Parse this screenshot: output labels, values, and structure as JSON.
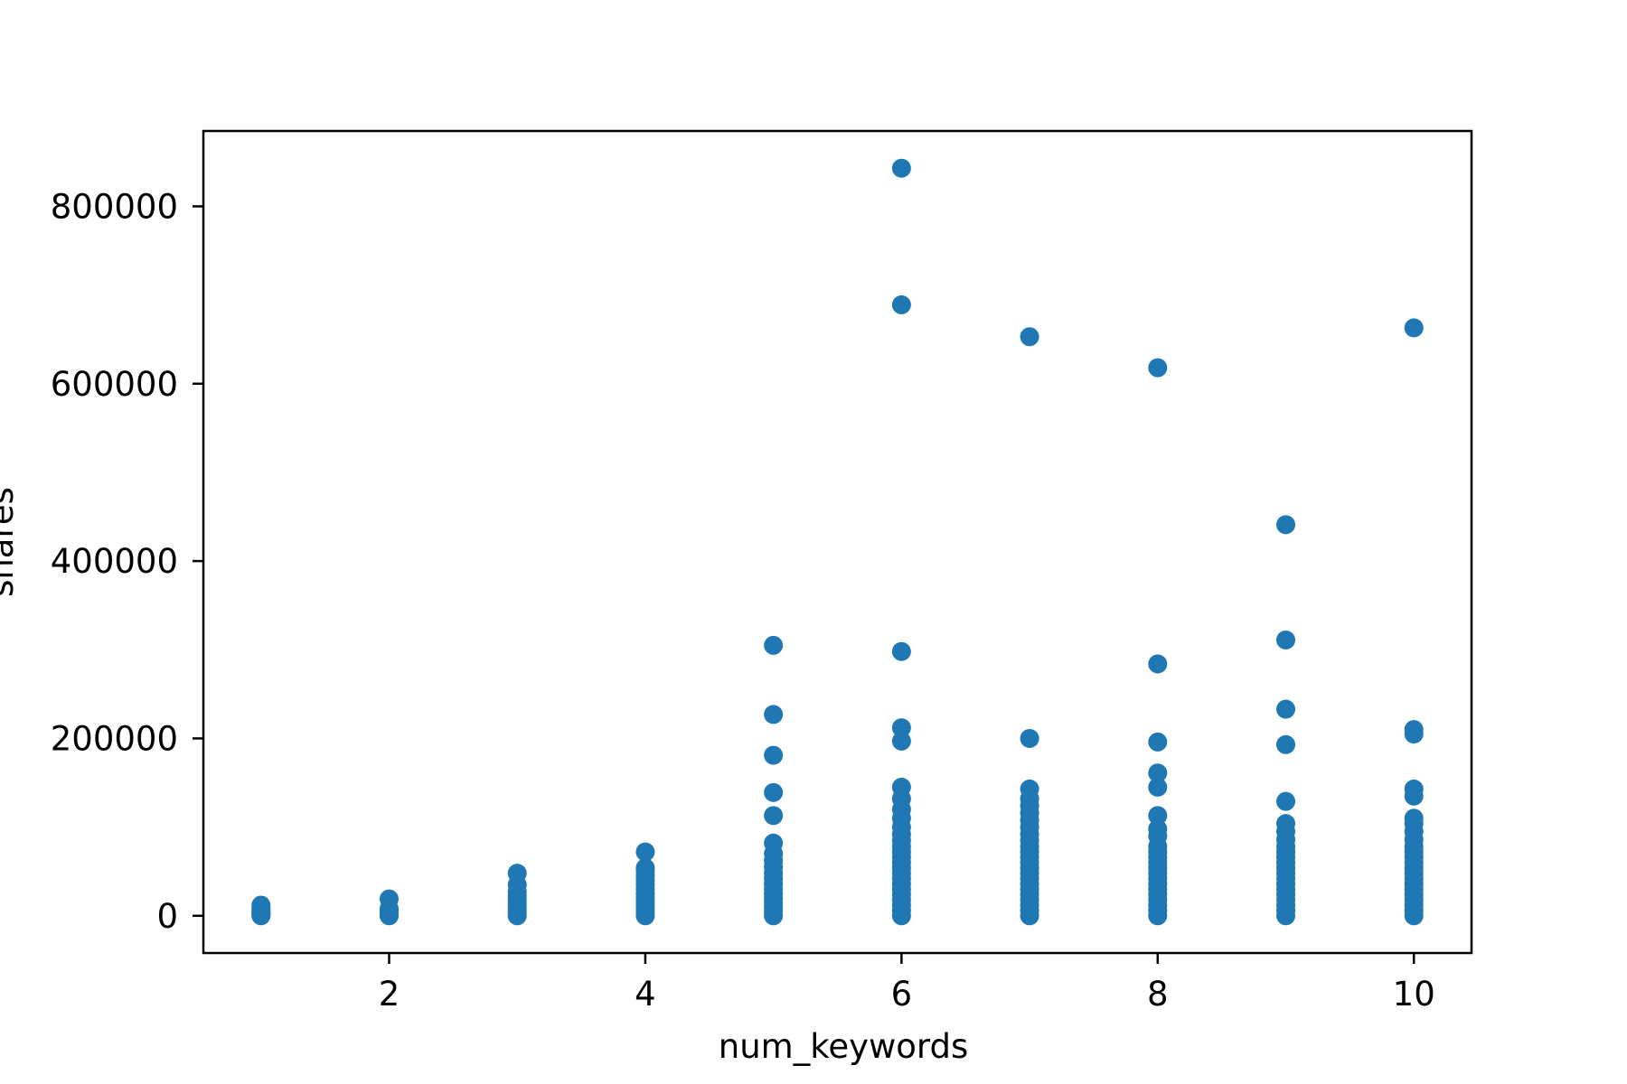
{
  "chart_data": {
    "type": "scatter",
    "title": "",
    "xlabel": "num_keywords",
    "ylabel": "shares",
    "xlim": [
      0.55,
      10.45
    ],
    "ylim": [
      -42000,
      885000
    ],
    "x_ticks": [
      2,
      4,
      6,
      8,
      10
    ],
    "y_ticks": [
      0,
      200000,
      400000,
      600000,
      800000
    ],
    "x_tick_labels": [
      "2",
      "4",
      "6",
      "8",
      "10"
    ],
    "y_tick_labels": [
      "0",
      "200000",
      "400000",
      "600000",
      "800000"
    ],
    "grid": false,
    "legend": "none",
    "colors": {
      "points": "#1f77b4",
      "axes": "#000000",
      "background": "#ffffff"
    },
    "points": [
      [
        1,
        0
      ],
      [
        1,
        1000
      ],
      [
        1,
        2000
      ],
      [
        1,
        3000
      ],
      [
        1,
        4000
      ],
      [
        1,
        5000
      ],
      [
        1,
        7000
      ],
      [
        1,
        9000
      ],
      [
        1,
        12000
      ],
      [
        2,
        0
      ],
      [
        2,
        1000
      ],
      [
        2,
        2000
      ],
      [
        2,
        4000
      ],
      [
        2,
        6000
      ],
      [
        2,
        8000
      ],
      [
        2,
        19000
      ],
      [
        3,
        0
      ],
      [
        3,
        3000
      ],
      [
        3,
        6000
      ],
      [
        3,
        10000
      ],
      [
        3,
        14000
      ],
      [
        3,
        18000
      ],
      [
        3,
        22000
      ],
      [
        3,
        27000
      ],
      [
        3,
        35000
      ],
      [
        3,
        48000
      ],
      [
        4,
        0
      ],
      [
        4,
        4000
      ],
      [
        4,
        8000
      ],
      [
        4,
        12000
      ],
      [
        4,
        16000
      ],
      [
        4,
        20000
      ],
      [
        4,
        25000
      ],
      [
        4,
        30000
      ],
      [
        4,
        35000
      ],
      [
        4,
        40000
      ],
      [
        4,
        45000
      ],
      [
        4,
        50000
      ],
      [
        4,
        54000
      ],
      [
        4,
        72000
      ],
      [
        5,
        0
      ],
      [
        5,
        5000
      ],
      [
        5,
        10000
      ],
      [
        5,
        15000
      ],
      [
        5,
        20000
      ],
      [
        5,
        25000
      ],
      [
        5,
        30000
      ],
      [
        5,
        36000
      ],
      [
        5,
        42000
      ],
      [
        5,
        48000
      ],
      [
        5,
        55000
      ],
      [
        5,
        62000
      ],
      [
        5,
        70000
      ],
      [
        5,
        82000
      ],
      [
        5,
        113000
      ],
      [
        5,
        139000
      ],
      [
        5,
        181000
      ],
      [
        5,
        227000
      ],
      [
        5,
        305000
      ],
      [
        6,
        0
      ],
      [
        6,
        6000
      ],
      [
        6,
        12000
      ],
      [
        6,
        18000
      ],
      [
        6,
        24000
      ],
      [
        6,
        30000
      ],
      [
        6,
        36000
      ],
      [
        6,
        42000
      ],
      [
        6,
        48000
      ],
      [
        6,
        54000
      ],
      [
        6,
        60000
      ],
      [
        6,
        66000
      ],
      [
        6,
        72000
      ],
      [
        6,
        78000
      ],
      [
        6,
        85000
      ],
      [
        6,
        92000
      ],
      [
        6,
        100000
      ],
      [
        6,
        110000
      ],
      [
        6,
        120000
      ],
      [
        6,
        132000
      ],
      [
        6,
        145000
      ],
      [
        6,
        197000
      ],
      [
        6,
        212000
      ],
      [
        6,
        298000
      ],
      [
        6,
        689000
      ],
      [
        6,
        843000
      ],
      [
        7,
        0
      ],
      [
        7,
        6000
      ],
      [
        7,
        12000
      ],
      [
        7,
        18000
      ],
      [
        7,
        24000
      ],
      [
        7,
        30000
      ],
      [
        7,
        36000
      ],
      [
        7,
        42000
      ],
      [
        7,
        48000
      ],
      [
        7,
        54000
      ],
      [
        7,
        60000
      ],
      [
        7,
        66000
      ],
      [
        7,
        72000
      ],
      [
        7,
        78000
      ],
      [
        7,
        85000
      ],
      [
        7,
        92000
      ],
      [
        7,
        100000
      ],
      [
        7,
        108000
      ],
      [
        7,
        116000
      ],
      [
        7,
        124000
      ],
      [
        7,
        132000
      ],
      [
        7,
        143000
      ],
      [
        7,
        200000
      ],
      [
        7,
        653000
      ],
      [
        8,
        0
      ],
      [
        8,
        6000
      ],
      [
        8,
        12000
      ],
      [
        8,
        18000
      ],
      [
        8,
        24000
      ],
      [
        8,
        30000
      ],
      [
        8,
        36000
      ],
      [
        8,
        42000
      ],
      [
        8,
        48000
      ],
      [
        8,
        54000
      ],
      [
        8,
        60000
      ],
      [
        8,
        66000
      ],
      [
        8,
        72000
      ],
      [
        8,
        78000
      ],
      [
        8,
        90000
      ],
      [
        8,
        98000
      ],
      [
        8,
        113000
      ],
      [
        8,
        145000
      ],
      [
        8,
        161000
      ],
      [
        8,
        196000
      ],
      [
        8,
        284000
      ],
      [
        8,
        618000
      ],
      [
        9,
        0
      ],
      [
        9,
        6000
      ],
      [
        9,
        12000
      ],
      [
        9,
        18000
      ],
      [
        9,
        24000
      ],
      [
        9,
        30000
      ],
      [
        9,
        36000
      ],
      [
        9,
        42000
      ],
      [
        9,
        48000
      ],
      [
        9,
        54000
      ],
      [
        9,
        60000
      ],
      [
        9,
        66000
      ],
      [
        9,
        72000
      ],
      [
        9,
        78000
      ],
      [
        9,
        86000
      ],
      [
        9,
        95000
      ],
      [
        9,
        104000
      ],
      [
        9,
        129000
      ],
      [
        9,
        193000
      ],
      [
        9,
        233000
      ],
      [
        9,
        311000
      ],
      [
        9,
        441000
      ],
      [
        10,
        0
      ],
      [
        10,
        6000
      ],
      [
        10,
        12000
      ],
      [
        10,
        18000
      ],
      [
        10,
        24000
      ],
      [
        10,
        30000
      ],
      [
        10,
        36000
      ],
      [
        10,
        42000
      ],
      [
        10,
        48000
      ],
      [
        10,
        54000
      ],
      [
        10,
        60000
      ],
      [
        10,
        66000
      ],
      [
        10,
        72000
      ],
      [
        10,
        78000
      ],
      [
        10,
        86000
      ],
      [
        10,
        95000
      ],
      [
        10,
        104000
      ],
      [
        10,
        110000
      ],
      [
        10,
        135000
      ],
      [
        10,
        143000
      ],
      [
        10,
        205000
      ],
      [
        10,
        210000
      ],
      [
        10,
        663000
      ]
    ]
  }
}
